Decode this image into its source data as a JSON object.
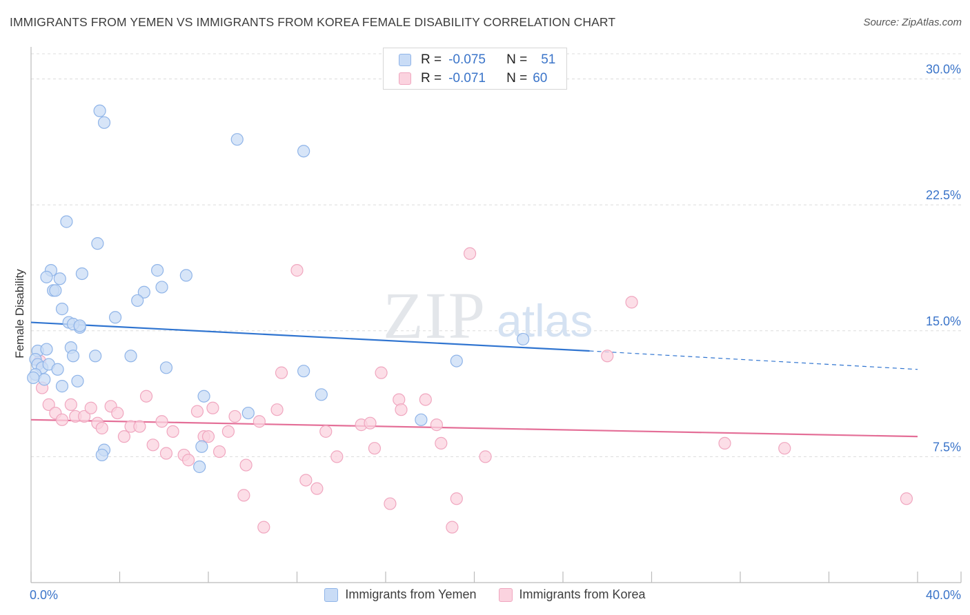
{
  "title": "IMMIGRANTS FROM YEMEN VS IMMIGRANTS FROM KOREA FEMALE DISABILITY CORRELATION CHART",
  "source": "Source: ZipAtlas.com",
  "watermark": {
    "zip": "ZIP",
    "atlas": "atlas"
  },
  "stats": {
    "r_label": "R =",
    "n_label": "N =",
    "rows": [
      {
        "r": "-0.075",
        "n": "51",
        "color": "#8fb4e8",
        "fill": "#c9dcf6"
      },
      {
        "r": "-0.071",
        "n": "60",
        "color": "#f0a6bf",
        "fill": "#fbd3df"
      }
    ]
  },
  "legend": [
    {
      "label": "Immigrants from Yemen",
      "color": "#8fb4e8",
      "fill": "#c9dcf6"
    },
    {
      "label": "Immigrants from Korea",
      "color": "#f0a6bf",
      "fill": "#fbd3df"
    }
  ],
  "chart_data": {
    "type": "scatter",
    "title": "IMMIGRANTS FROM YEMEN VS IMMIGRANTS FROM KOREA FEMALE DISABILITY CORRELATION CHART",
    "xlabel": "",
    "ylabel": "Female Disability",
    "xlim": [
      0,
      40
    ],
    "ylim": [
      0,
      31.5
    ],
    "x_tick_labels": [
      "0.0%",
      "40.0%"
    ],
    "y_ticks": [
      7.5,
      15.0,
      22.5,
      30.0
    ],
    "y_tick_labels": [
      "7.5%",
      "15.0%",
      "22.5%",
      "30.0%"
    ],
    "x_minor_ticks": [
      0,
      4,
      8,
      12,
      16,
      20,
      24,
      28,
      32,
      36,
      40
    ],
    "grid": true,
    "series": [
      {
        "name": "Immigrants from Yemen",
        "stroke": "#8fb4e8",
        "fill": "#c9dcf6",
        "trend": {
          "x0": 0,
          "y0": 15.5,
          "x1": 25.2,
          "y1": 13.8,
          "color": "#2f74d0",
          "dash_x1": 40,
          "dash_y1": 12.7
        },
        "points": [
          [
            3.1,
            28.1
          ],
          [
            3.3,
            27.4
          ],
          [
            9.3,
            26.4
          ],
          [
            12.3,
            25.7
          ],
          [
            1.6,
            21.5
          ],
          [
            3.0,
            20.2
          ],
          [
            0.9,
            18.6
          ],
          [
            0.7,
            18.2
          ],
          [
            1.3,
            18.1
          ],
          [
            2.3,
            18.4
          ],
          [
            5.7,
            18.6
          ],
          [
            7.0,
            18.3
          ],
          [
            5.9,
            17.6
          ],
          [
            5.1,
            17.3
          ],
          [
            1.0,
            17.4
          ],
          [
            1.1,
            17.4
          ],
          [
            4.8,
            16.8
          ],
          [
            1.4,
            16.3
          ],
          [
            3.8,
            15.8
          ],
          [
            1.7,
            15.5
          ],
          [
            2.2,
            15.2
          ],
          [
            1.9,
            15.4
          ],
          [
            2.2,
            15.3
          ],
          [
            0.3,
            13.8
          ],
          [
            0.7,
            13.9
          ],
          [
            1.8,
            14.0
          ],
          [
            2.9,
            13.5
          ],
          [
            1.9,
            13.5
          ],
          [
            4.5,
            13.5
          ],
          [
            0.2,
            13.3
          ],
          [
            0.3,
            13.0
          ],
          [
            0.5,
            12.8
          ],
          [
            0.8,
            13.0
          ],
          [
            1.2,
            12.7
          ],
          [
            6.1,
            12.8
          ],
          [
            12.3,
            12.6
          ],
          [
            0.2,
            12.4
          ],
          [
            0.6,
            12.1
          ],
          [
            2.1,
            12.0
          ],
          [
            1.4,
            11.7
          ],
          [
            0.1,
            12.2
          ],
          [
            7.8,
            11.1
          ],
          [
            13.1,
            11.2
          ],
          [
            9.8,
            10.1
          ],
          [
            17.6,
            9.7
          ],
          [
            19.2,
            13.2
          ],
          [
            22.2,
            14.5
          ],
          [
            3.3,
            7.9
          ],
          [
            7.7,
            8.1
          ],
          [
            3.2,
            7.6
          ],
          [
            7.6,
            6.9
          ]
        ]
      },
      {
        "name": "Immigrants from Korea",
        "stroke": "#f0a6bf",
        "fill": "#fbd3df",
        "trend": {
          "x0": 0,
          "y0": 9.7,
          "x1": 40,
          "y1": 8.7,
          "color": "#e46e97"
        },
        "points": [
          [
            0.4,
            13.2
          ],
          [
            0.5,
            11.6
          ],
          [
            0.8,
            10.6
          ],
          [
            1.1,
            10.1
          ],
          [
            1.4,
            9.7
          ],
          [
            1.8,
            10.6
          ],
          [
            2.0,
            9.9
          ],
          [
            2.4,
            9.9
          ],
          [
            2.7,
            10.4
          ],
          [
            3.0,
            9.5
          ],
          [
            3.2,
            9.2
          ],
          [
            3.6,
            10.5
          ],
          [
            3.9,
            10.1
          ],
          [
            4.2,
            8.7
          ],
          [
            4.5,
            9.3
          ],
          [
            4.9,
            9.3
          ],
          [
            5.2,
            11.1
          ],
          [
            5.5,
            8.2
          ],
          [
            5.9,
            9.6
          ],
          [
            6.1,
            7.7
          ],
          [
            6.4,
            9.0
          ],
          [
            6.9,
            7.6
          ],
          [
            7.1,
            7.3
          ],
          [
            7.5,
            10.2
          ],
          [
            7.8,
            8.7
          ],
          [
            8.0,
            8.7
          ],
          [
            8.2,
            10.4
          ],
          [
            8.5,
            7.8
          ],
          [
            8.9,
            9.0
          ],
          [
            9.2,
            9.9
          ],
          [
            9.6,
            5.2
          ],
          [
            9.7,
            7.0
          ],
          [
            10.3,
            9.6
          ],
          [
            10.5,
            3.3
          ],
          [
            11.1,
            10.3
          ],
          [
            11.3,
            12.5
          ],
          [
            12.0,
            18.6
          ],
          [
            12.4,
            6.1
          ],
          [
            12.9,
            5.6
          ],
          [
            13.3,
            9.0
          ],
          [
            13.8,
            7.5
          ],
          [
            14.9,
            9.4
          ],
          [
            15.3,
            9.5
          ],
          [
            15.5,
            8.0
          ],
          [
            15.8,
            12.5
          ],
          [
            16.2,
            4.7
          ],
          [
            16.6,
            10.9
          ],
          [
            16.7,
            10.3
          ],
          [
            17.8,
            10.9
          ],
          [
            18.3,
            9.4
          ],
          [
            18.5,
            8.3
          ],
          [
            19.0,
            3.3
          ],
          [
            19.2,
            5.0
          ],
          [
            19.8,
            19.6
          ],
          [
            20.5,
            7.5
          ],
          [
            26.0,
            13.5
          ],
          [
            27.1,
            16.7
          ],
          [
            31.3,
            8.3
          ],
          [
            34.0,
            8.0
          ],
          [
            39.5,
            5.0
          ]
        ]
      }
    ]
  }
}
